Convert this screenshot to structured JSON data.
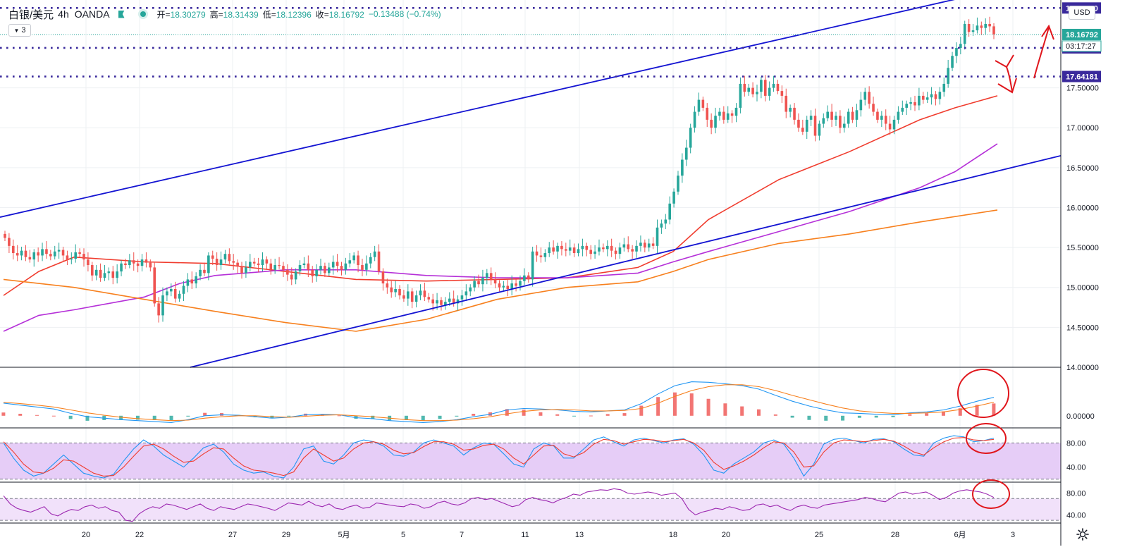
{
  "header": {
    "symbol": "白银/美元",
    "interval": "4h",
    "exchange": "OANDA",
    "open_label": "开=",
    "open": "18.30279",
    "high_label": "高=",
    "high": "18.31439",
    "low_label": "低=",
    "low": "18.12396",
    "close_label": "收=",
    "close": "18.16792",
    "change": "−0.13488 (−0.74%)",
    "indicator_count": "3",
    "currency_button": "USD"
  },
  "colors": {
    "up": "#26a69a",
    "down": "#ef5350",
    "channel": "#1414d2",
    "ma_red": "#f03c2e",
    "ma_purple": "#b530d8",
    "ma_orange": "#f7801e",
    "level": "#3a2a9c",
    "annotation": "#e0161c"
  },
  "chart_data": [
    {
      "type": "candlestick",
      "title": "",
      "ylim": [
        14.0,
        18.6
      ],
      "y_ticks": [
        "14.00000",
        "14.50000",
        "15.00000",
        "15.50000",
        "16.00000",
        "16.50000",
        "17.00000",
        "17.50000"
      ],
      "x_ticks": [
        "20",
        "22",
        "27",
        "29",
        "5月",
        "5",
        "7",
        "11",
        "13",
        "18",
        "20",
        "25",
        "28",
        "6月",
        "3"
      ],
      "price_levels": [
        {
          "value": 18.5,
          "label": "18.50000"
        },
        {
          "value": 18.0,
          "label": "18.00000"
        },
        {
          "value": 17.64181,
          "label": "17.64181"
        }
      ],
      "last_price": {
        "value": 18.16792,
        "label": "18.16792",
        "countdown": "03:17:27"
      },
      "closes": [
        15.62,
        15.52,
        15.43,
        15.4,
        15.46,
        15.38,
        15.35,
        15.44,
        15.4,
        15.48,
        15.42,
        15.39,
        15.45,
        15.47,
        15.4,
        15.35,
        15.36,
        15.44,
        15.42,
        15.35,
        15.28,
        15.15,
        15.22,
        15.12,
        15.18,
        15.2,
        15.12,
        15.2,
        15.3,
        15.28,
        15.34,
        15.3,
        15.27,
        15.35,
        15.31,
        15.25,
        14.8,
        14.65,
        14.9,
        14.95,
        14.98,
        14.86,
        14.92,
        15.02,
        15.1,
        15.05,
        15.14,
        15.22,
        15.18,
        15.4,
        15.36,
        15.28,
        15.35,
        15.42,
        15.33,
        15.31,
        15.26,
        15.18,
        15.25,
        15.32,
        15.3,
        15.28,
        15.35,
        15.3,
        15.22,
        15.28,
        15.27,
        15.22,
        15.16,
        15.1,
        15.2,
        15.28,
        15.3,
        15.22,
        15.14,
        15.22,
        15.27,
        15.18,
        15.25,
        15.32,
        15.27,
        15.22,
        15.3,
        15.34,
        15.4,
        15.28,
        15.22,
        15.3,
        15.38,
        15.45,
        15.2,
        15.05,
        15.0,
        14.94,
        14.98,
        14.9,
        14.86,
        14.95,
        14.82,
        14.9,
        14.96,
        14.88,
        14.85,
        14.8,
        14.84,
        14.78,
        14.82,
        14.86,
        14.8,
        14.85,
        14.9,
        14.95,
        15.0,
        15.08,
        15.04,
        15.12,
        15.18,
        15.1,
        15.05,
        15.0,
        15.02,
        14.98,
        15.05,
        15.02,
        15.08,
        15.15,
        15.1,
        15.45,
        15.4,
        15.38,
        15.43,
        15.5,
        15.45,
        15.52,
        15.48,
        15.46,
        15.5,
        15.43,
        15.48,
        15.52,
        15.47,
        15.42,
        15.45,
        15.5,
        15.48,
        15.52,
        15.46,
        15.42,
        15.5,
        15.54,
        15.48,
        15.45,
        15.52,
        15.56,
        15.5,
        15.55,
        15.52,
        15.75,
        15.8,
        15.85,
        16.05,
        16.2,
        16.4,
        16.6,
        16.75,
        17.0,
        17.2,
        17.35,
        17.25,
        17.1,
        17.0,
        17.15,
        17.2,
        17.1,
        17.18,
        17.15,
        17.25,
        17.55,
        17.45,
        17.5,
        17.42,
        17.45,
        17.6,
        17.4,
        17.5,
        17.55,
        17.46,
        17.4,
        17.2,
        17.25,
        17.1,
        17.0,
        16.95,
        17.1,
        17.15,
        16.9,
        17.05,
        17.12,
        17.2,
        17.1,
        17.15,
        17.0,
        17.05,
        17.2,
        17.1,
        17.22,
        17.35,
        17.45,
        17.3,
        17.2,
        17.1,
        17.15,
        17.05,
        16.98,
        17.1,
        17.2,
        17.25,
        17.3,
        17.32,
        17.28,
        17.4,
        17.35,
        17.38,
        17.42,
        17.36,
        17.45,
        17.55,
        17.75,
        17.9,
        18.0,
        18.05,
        18.3,
        18.2,
        18.22,
        18.28,
        18.25,
        18.3,
        18.27,
        18.17
      ],
      "moving_averages": [
        {
          "color": "#f03c2e",
          "points": [
            [
              0,
              14.9
            ],
            [
              50,
              15.2
            ],
            [
              100,
              15.38
            ],
            [
              200,
              15.32
            ],
            [
              300,
              15.3
            ],
            [
              400,
              15.2
            ],
            [
              500,
              15.1
            ],
            [
              600,
              15.08
            ],
            [
              700,
              15.1
            ],
            [
              800,
              15.12
            ],
            [
              900,
              15.25
            ],
            [
              950,
              15.45
            ],
            [
              1000,
              15.85
            ],
            [
              1100,
              16.35
            ],
            [
              1200,
              16.7
            ],
            [
              1300,
              17.1
            ],
            [
              1350,
              17.25
            ],
            [
              1410,
              17.4
            ]
          ]
        },
        {
          "color": "#b530d8",
          "points": [
            [
              0,
              14.45
            ],
            [
              50,
              14.65
            ],
            [
              100,
              14.72
            ],
            [
              200,
              14.88
            ],
            [
              250,
              15.05
            ],
            [
              300,
              15.15
            ],
            [
              400,
              15.22
            ],
            [
              500,
              15.22
            ],
            [
              600,
              15.15
            ],
            [
              700,
              15.12
            ],
            [
              800,
              15.12
            ],
            [
              900,
              15.18
            ],
            [
              950,
              15.32
            ],
            [
              1000,
              15.45
            ],
            [
              1100,
              15.7
            ],
            [
              1200,
              15.95
            ],
            [
              1300,
              16.25
            ],
            [
              1350,
              16.45
            ],
            [
              1410,
              16.8
            ]
          ]
        },
        {
          "color": "#f7801e",
          "points": [
            [
              0,
              15.1
            ],
            [
              100,
              15.0
            ],
            [
              200,
              14.85
            ],
            [
              300,
              14.7
            ],
            [
              400,
              14.56
            ],
            [
              500,
              14.45
            ],
            [
              600,
              14.6
            ],
            [
              700,
              14.85
            ],
            [
              800,
              15.0
            ],
            [
              900,
              15.07
            ],
            [
              950,
              15.2
            ],
            [
              1000,
              15.35
            ],
            [
              1100,
              15.55
            ],
            [
              1200,
              15.67
            ],
            [
              1300,
              15.82
            ],
            [
              1410,
              15.97
            ]
          ]
        }
      ],
      "trend_lines": [
        {
          "color": "#1414d2",
          "from": [
            0,
            15.88
          ],
          "to": [
            1450,
            18.8
          ]
        },
        {
          "color": "#1414d2",
          "from": [
            270,
            14.0
          ],
          "to": [
            1505,
            16.65
          ]
        }
      ]
    },
    {
      "type": "line",
      "title": "",
      "ylim": [
        -0.25,
        1.0
      ],
      "y_ticks": [
        "0.00000"
      ],
      "series": [
        {
          "color": "#2196f3",
          "values": [
            0.26,
            0.22,
            0.18,
            0.14,
            0.05,
            -0.02,
            -0.05,
            -0.08,
            -0.1,
            -0.12,
            -0.14,
            -0.08,
            0.0,
            0.02,
            0.01,
            -0.02,
            -0.05,
            -0.03,
            0.02,
            0.03,
            0.02,
            -0.04,
            -0.06,
            -0.1,
            -0.12,
            -0.14,
            -0.12,
            -0.08,
            -0.02,
            0.03,
            0.12,
            0.15,
            0.14,
            0.12,
            0.09,
            0.08,
            0.1,
            0.12,
            0.25,
            0.45,
            0.62,
            0.7,
            0.69,
            0.66,
            0.62,
            0.55,
            0.42,
            0.3,
            0.2,
            0.12,
            0.06,
            0.05,
            0.03,
            0.02,
            0.06,
            0.08,
            0.12,
            0.2,
            0.3,
            0.38
          ]
        },
        {
          "color": "#f7801e",
          "values": [
            0.28,
            0.25,
            0.22,
            0.18,
            0.12,
            0.06,
            0.01,
            -0.03,
            -0.06,
            -0.08,
            -0.1,
            -0.09,
            -0.05,
            -0.02,
            0.0,
            0.0,
            -0.02,
            -0.03,
            -0.01,
            0.01,
            0.02,
            0.0,
            -0.02,
            -0.05,
            -0.08,
            -0.1,
            -0.1,
            -0.09,
            -0.06,
            -0.02,
            0.04,
            0.09,
            0.12,
            0.13,
            0.12,
            0.1,
            0.1,
            0.11,
            0.15,
            0.26,
            0.4,
            0.52,
            0.6,
            0.64,
            0.64,
            0.6,
            0.52,
            0.42,
            0.33,
            0.24,
            0.16,
            0.1,
            0.07,
            0.05,
            0.05,
            0.06,
            0.08,
            0.13,
            0.2,
            0.28
          ]
        }
      ]
    },
    {
      "type": "line",
      "title": "",
      "ylim": [
        15,
        105
      ],
      "y_ticks": [
        "80.00",
        "40.00"
      ],
      "band": [
        20,
        80
      ],
      "series": [
        {
          "color": "#2196f3",
          "values": [
            80,
            55,
            35,
            25,
            30,
            45,
            60,
            45,
            30,
            25,
            22,
            28,
            50,
            70,
            85,
            75,
            60,
            50,
            40,
            55,
            72,
            78,
            65,
            45,
            35,
            30,
            32,
            25,
            22,
            40,
            70,
            75,
            50,
            45,
            60,
            80,
            85,
            82,
            75,
            60,
            58,
            65,
            80,
            85,
            80,
            75,
            60,
            72,
            80,
            78,
            62,
            45,
            40,
            70,
            80,
            75,
            55,
            55,
            70,
            85,
            90,
            82,
            75,
            85,
            88,
            84,
            80,
            85,
            87,
            78,
            60,
            35,
            30,
            45,
            55,
            65,
            80,
            85,
            78,
            55,
            25,
            45,
            78,
            86,
            88,
            84,
            80,
            86,
            87,
            82,
            70,
            60,
            58,
            80,
            88,
            92,
            90,
            82,
            84,
            88
          ]
        },
        {
          "color": "#f03c2e",
          "values": [
            82,
            65,
            45,
            32,
            30,
            38,
            52,
            50,
            40,
            30,
            25,
            26,
            40,
            58,
            75,
            78,
            70,
            58,
            48,
            50,
            62,
            72,
            70,
            55,
            42,
            35,
            33,
            30,
            26,
            32,
            55,
            70,
            60,
            50,
            55,
            70,
            80,
            82,
            78,
            68,
            62,
            64,
            74,
            82,
            82,
            78,
            68,
            70,
            76,
            78,
            70,
            55,
            45,
            60,
            75,
            76,
            62,
            57,
            64,
            78,
            86,
            84,
            78,
            82,
            86,
            85,
            82,
            84,
            86,
            80,
            68,
            48,
            36,
            42,
            50,
            60,
            72,
            82,
            80,
            65,
            40,
            42,
            65,
            80,
            85,
            84,
            82,
            84,
            86,
            83,
            75,
            65,
            60,
            72,
            82,
            88,
            89,
            85,
            84,
            86
          ]
        }
      ]
    },
    {
      "type": "line",
      "title": "",
      "ylim": [
        25,
        100
      ],
      "y_ticks": [
        "80.00",
        "40.00"
      ],
      "band": [
        30,
        70
      ],
      "series": [
        {
          "color": "#9c27b0",
          "values": [
            75,
            60,
            52,
            48,
            45,
            50,
            55,
            42,
            38,
            45,
            50,
            48,
            55,
            58,
            52,
            55,
            48,
            45,
            30,
            28,
            42,
            50,
            55,
            52,
            60,
            58,
            54,
            50,
            55,
            60,
            52,
            48,
            55,
            52,
            50,
            55,
            60,
            58,
            55,
            52,
            48,
            55,
            62,
            60,
            58,
            65,
            58,
            55,
            60,
            52,
            50,
            55,
            58,
            52,
            54,
            62,
            60,
            58,
            56,
            55,
            60,
            58,
            52,
            55,
            62,
            65,
            60,
            58,
            62,
            70,
            72,
            68,
            70,
            65,
            60,
            55,
            58,
            68,
            72,
            68,
            66,
            62,
            68,
            72,
            78,
            76,
            82,
            84,
            86,
            85,
            88,
            86,
            80,
            78,
            80,
            82,
            80,
            76,
            78,
            80,
            70,
            50,
            40,
            45,
            48,
            52,
            50,
            55,
            52,
            48,
            50,
            58,
            60,
            55,
            58,
            52,
            48,
            55,
            58,
            54,
            52,
            58,
            60,
            62,
            64,
            66,
            68,
            72,
            70,
            66,
            64,
            72,
            80,
            82,
            78,
            80,
            82,
            76,
            68,
            72,
            80,
            84,
            86,
            84,
            82,
            78,
            72
          ]
        }
      ]
    }
  ]
}
